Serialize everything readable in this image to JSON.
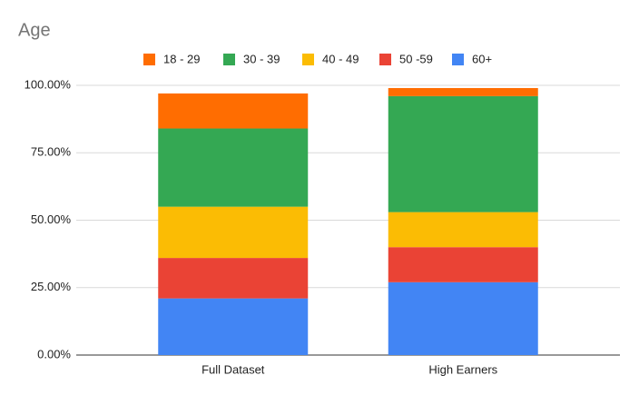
{
  "chart_data": {
    "type": "stacked_bar",
    "title": "Age",
    "categories": [
      "Full Dataset",
      "High Earners"
    ],
    "series": [
      {
        "name": "18 - 29",
        "color": "#ff6d01",
        "values": [
          13,
          3
        ]
      },
      {
        "name": "30 - 39",
        "color": "#34a853",
        "values": [
          29,
          43
        ]
      },
      {
        "name": "40 - 49",
        "color": "#fbbc04",
        "values": [
          19,
          13
        ]
      },
      {
        "name": "50 -59",
        "color": "#ea4335",
        "values": [
          15,
          13
        ]
      },
      {
        "name": "60+",
        "color": "#4285f4",
        "values": [
          21,
          27
        ]
      }
    ],
    "ylim": [
      0,
      100
    ],
    "yticks": [
      {
        "value": 0,
        "label": "0.00%"
      },
      {
        "value": 25,
        "label": "25.00%"
      },
      {
        "value": 50,
        "label": "50.00%"
      },
      {
        "value": 75,
        "label": "75.00%"
      },
      {
        "value": 100,
        "label": "100.00%"
      }
    ],
    "grid": true,
    "legend": "top"
  }
}
